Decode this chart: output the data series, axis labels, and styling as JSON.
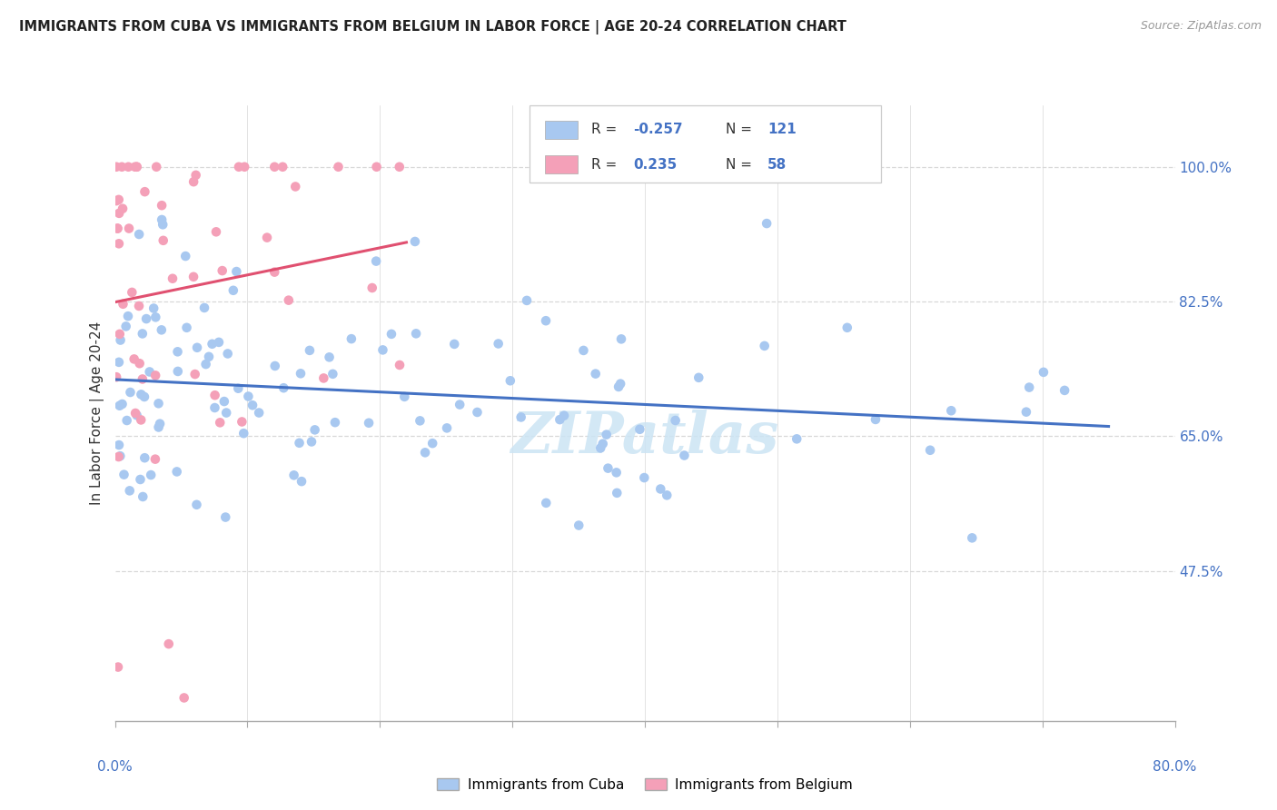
{
  "title": "IMMIGRANTS FROM CUBA VS IMMIGRANTS FROM BELGIUM IN LABOR FORCE | AGE 20-24 CORRELATION CHART",
  "source": "Source: ZipAtlas.com",
  "ylabel": "In Labor Force | Age 20-24",
  "right_yticks": [
    47.5,
    65.0,
    82.5,
    100.0
  ],
  "xmin": 0.0,
  "xmax": 80.0,
  "ymin": 28.0,
  "ymax": 108.0,
  "legend_cuba_R": "-0.257",
  "legend_cuba_N": "121",
  "legend_belgium_R": "0.235",
  "legend_belgium_N": "58",
  "cuba_color": "#a8c8f0",
  "belgium_color": "#f4a0b8",
  "trend_cuba_color": "#4472c4",
  "trend_belgium_color": "#e05070",
  "watermark": "ZIPatlas",
  "watermark_color": "#cce4f4",
  "grid_color": "#d8d8d8",
  "title_color": "#222222",
  "source_color": "#999999",
  "axis_label_color": "#4472c4",
  "legend_text_color": "#333333",
  "legend_value_color": "#4472c4"
}
